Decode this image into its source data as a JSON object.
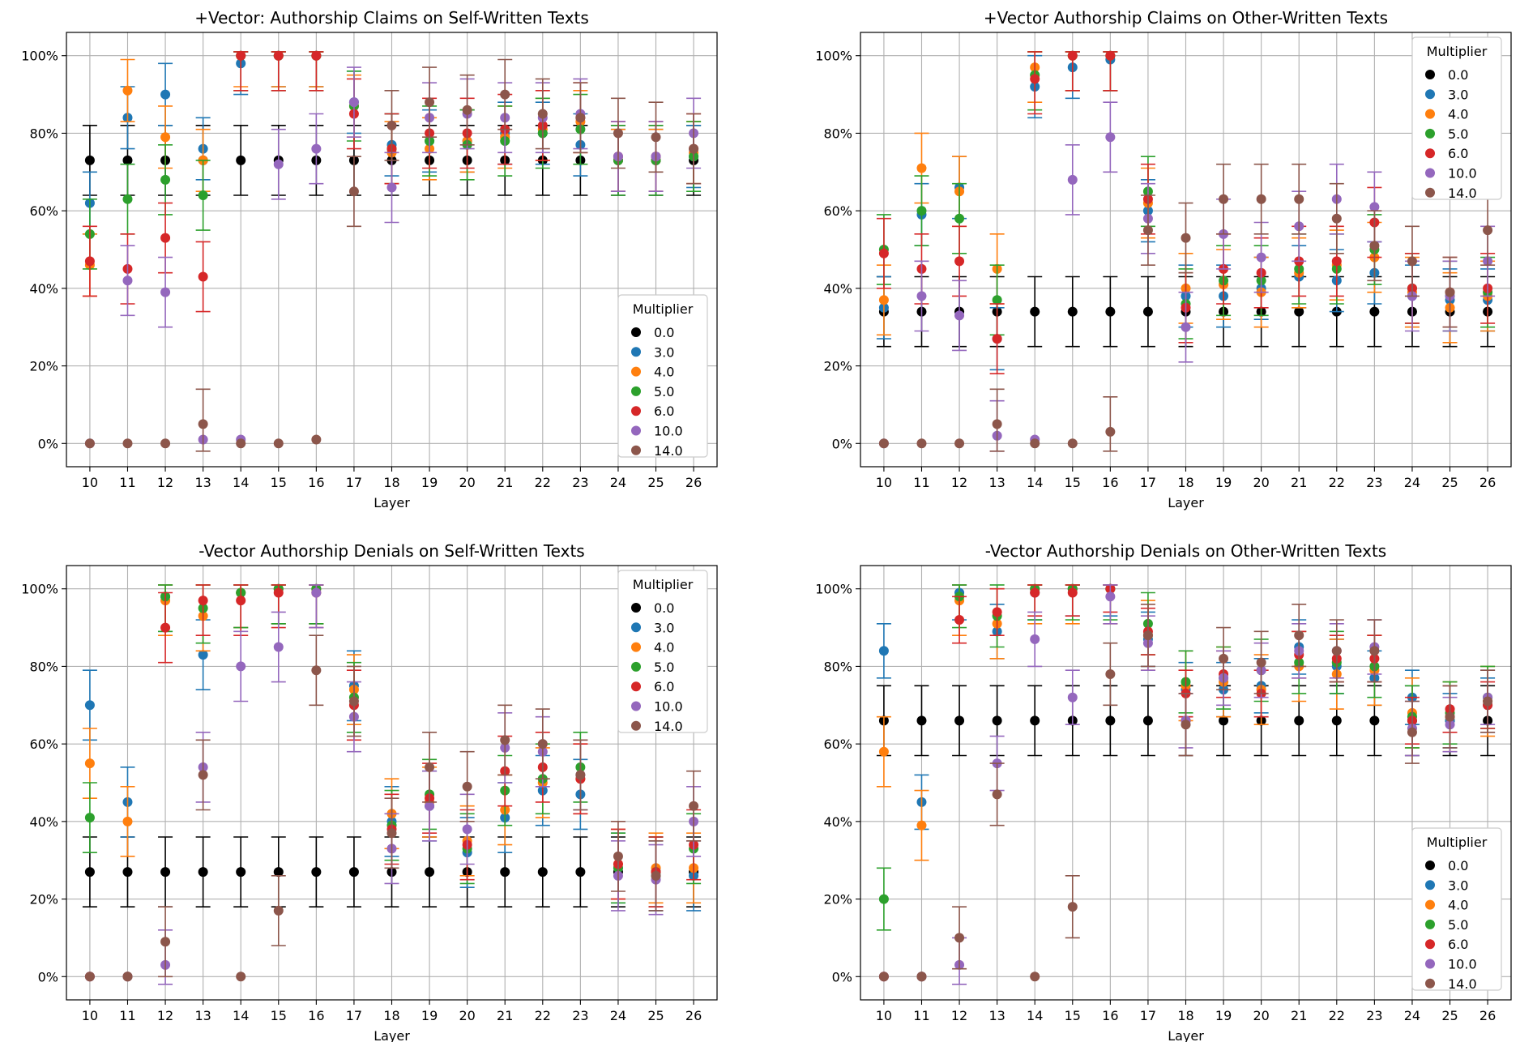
{
  "chart_data": [
    {
      "type": "scatter",
      "title": "+Vector: Authorship Claims on Self-Written Texts",
      "xlabel": "Layer",
      "ylabel": "",
      "ylim": [
        -6,
        106
      ],
      "grid": true,
      "legend_position": "lower-right",
      "legend_title": "Multiplier",
      "x": [
        10,
        11,
        12,
        13,
        14,
        15,
        16,
        17,
        18,
        19,
        20,
        21,
        22,
        23,
        24,
        25,
        26
      ],
      "yticks": [
        "0%",
        "20%",
        "40%",
        "60%",
        "80%",
        "100%"
      ],
      "series": [
        {
          "name": "0.0",
          "values": [
            73,
            73,
            73,
            73,
            73,
            73,
            73,
            73,
            73,
            73,
            73,
            73,
            73,
            73,
            73,
            73,
            73
          ],
          "error": 9
        },
        {
          "name": "3.0",
          "values": [
            62,
            84,
            90,
            76,
            98,
            100,
            100,
            88,
            77,
            78,
            78,
            80,
            80,
            77,
            73,
            73,
            74
          ],
          "error": 8
        },
        {
          "name": "4.0",
          "values": [
            46,
            91,
            79,
            73,
            100,
            100,
            100,
            87,
            75,
            76,
            78,
            79,
            81,
            83,
            73,
            73,
            75
          ],
          "error": 8
        },
        {
          "name": "5.0",
          "values": [
            54,
            63,
            68,
            64,
            100,
            100,
            100,
            87,
            76,
            78,
            77,
            78,
            80,
            81,
            73,
            73,
            74
          ],
          "error": 9
        },
        {
          "name": "6.0",
          "values": [
            47,
            45,
            53,
            43,
            100,
            100,
            100,
            85,
            76,
            80,
            80,
            81,
            82,
            84,
            74,
            74,
            76
          ],
          "error": 9
        },
        {
          "name": "10.0",
          "values": [
            0,
            42,
            39,
            1,
            1,
            72,
            76,
            88,
            66,
            84,
            85,
            84,
            84,
            85,
            74,
            74,
            80
          ],
          "error": 9
        },
        {
          "name": "14.0",
          "values": [
            0,
            0,
            0,
            5,
            0,
            0,
            1,
            65,
            82,
            88,
            86,
            90,
            85,
            84,
            80,
            79,
            76
          ],
          "error": 9
        }
      ]
    },
    {
      "type": "scatter",
      "title": "+Vector Authorship Claims on Other-Written Texts",
      "xlabel": "Layer",
      "ylabel": "",
      "ylim": [
        -6,
        106
      ],
      "grid": true,
      "legend_position": "upper-right",
      "legend_title": "Multiplier",
      "x": [
        10,
        11,
        12,
        13,
        14,
        15,
        16,
        17,
        18,
        19,
        20,
        21,
        22,
        23,
        24,
        25,
        26
      ],
      "yticks": [
        "0%",
        "20%",
        "40%",
        "60%",
        "80%",
        "100%"
      ],
      "series": [
        {
          "name": "0.0",
          "values": [
            34,
            34,
            34,
            34,
            34,
            34,
            34,
            34,
            34,
            34,
            34,
            34,
            34,
            34,
            34,
            34,
            34
          ],
          "error": 9
        },
        {
          "name": "3.0",
          "values": [
            35,
            59,
            66,
            27,
            92,
            97,
            99,
            60,
            38,
            38,
            40,
            43,
            42,
            44,
            38,
            37,
            37
          ],
          "error": 8
        },
        {
          "name": "4.0",
          "values": [
            37,
            71,
            65,
            45,
            97,
            100,
            100,
            62,
            40,
            41,
            39,
            44,
            46,
            48,
            39,
            35,
            38
          ],
          "error": 9
        },
        {
          "name": "5.0",
          "values": [
            50,
            60,
            58,
            37,
            95,
            100,
            100,
            65,
            36,
            42,
            42,
            45,
            45,
            50,
            40,
            38,
            39
          ],
          "error": 9
        },
        {
          "name": "6.0",
          "values": [
            49,
            45,
            47,
            27,
            94,
            100,
            100,
            63,
            35,
            45,
            44,
            47,
            47,
            57,
            40,
            39,
            40
          ],
          "error": 9
        },
        {
          "name": "10.0",
          "values": [
            0,
            38,
            33,
            2,
            1,
            68,
            79,
            58,
            30,
            54,
            48,
            56,
            63,
            61,
            38,
            38,
            47
          ],
          "error": 9
        },
        {
          "name": "14.0",
          "values": [
            0,
            0,
            0,
            5,
            0,
            0,
            3,
            55,
            53,
            63,
            63,
            63,
            58,
            51,
            47,
            39,
            55
          ],
          "error": 9
        }
      ]
    },
    {
      "type": "scatter",
      "title": "-Vector Authorship Denials on Self-Written Texts",
      "xlabel": "Layer",
      "ylabel": "",
      "ylim": [
        -6,
        106
      ],
      "grid": true,
      "legend_position": "upper-right",
      "legend_title": "Multiplier",
      "x": [
        10,
        11,
        12,
        13,
        14,
        15,
        16,
        17,
        18,
        19,
        20,
        21,
        22,
        23,
        24,
        25,
        26
      ],
      "yticks": [
        "0%",
        "20%",
        "40%",
        "60%",
        "80%",
        "100%"
      ],
      "series": [
        {
          "name": "0.0",
          "values": [
            27,
            27,
            27,
            27,
            27,
            27,
            27,
            27,
            27,
            27,
            27,
            27,
            27,
            27,
            27,
            27,
            27
          ],
          "error": 9
        },
        {
          "name": "3.0",
          "values": [
            70,
            45,
            98,
            83,
            99,
            100,
            100,
            75,
            40,
            44,
            32,
            41,
            48,
            47,
            28,
            26,
            26
          ],
          "error": 9
        },
        {
          "name": "4.0",
          "values": [
            55,
            40,
            97,
            93,
            99,
            100,
            100,
            74,
            42,
            45,
            35,
            43,
            50,
            51,
            29,
            28,
            28
          ],
          "error": 9
        },
        {
          "name": "5.0",
          "values": [
            41,
            0,
            98,
            95,
            99,
            100,
            100,
            72,
            39,
            47,
            33,
            48,
            51,
            54,
            28,
            27,
            33
          ],
          "error": 9
        },
        {
          "name": "6.0",
          "values": [
            0,
            0,
            90,
            97,
            97,
            99,
            99,
            70,
            38,
            46,
            34,
            53,
            54,
            51,
            29,
            27,
            34
          ],
          "error": 9
        },
        {
          "name": "10.0",
          "values": [
            0,
            0,
            3,
            54,
            80,
            85,
            99,
            67,
            33,
            44,
            38,
            59,
            58,
            52,
            26,
            25,
            40
          ],
          "error": 9
        },
        {
          "name": "14.0",
          "values": [
            0,
            0,
            9,
            52,
            0,
            17,
            79,
            71,
            37,
            54,
            49,
            61,
            60,
            52,
            31,
            26,
            44
          ],
          "error": 9
        }
      ]
    },
    {
      "type": "scatter",
      "title": "-Vector Authorship Denials on Other-Written Texts",
      "xlabel": "Layer",
      "ylabel": "",
      "ylim": [
        -6,
        106
      ],
      "grid": true,
      "legend_position": "lower-right",
      "legend_title": "Multiplier",
      "x": [
        10,
        11,
        12,
        13,
        14,
        15,
        16,
        17,
        18,
        19,
        20,
        21,
        22,
        23,
        24,
        25,
        26
      ],
      "yticks": [
        "0%",
        "20%",
        "40%",
        "60%",
        "80%",
        "100%"
      ],
      "series": [
        {
          "name": "0.0",
          "values": [
            66,
            66,
            66,
            66,
            66,
            66,
            66,
            66,
            66,
            66,
            66,
            66,
            66,
            66,
            66,
            66,
            66
          ],
          "error": 9
        },
        {
          "name": "3.0",
          "values": [
            84,
            45,
            99,
            89,
            99,
            100,
            100,
            87,
            74,
            74,
            75,
            85,
            80,
            77,
            72,
            66,
            70
          ],
          "error": 7
        },
        {
          "name": "4.0",
          "values": [
            58,
            39,
            97,
            91,
            100,
            100,
            100,
            88,
            75,
            76,
            74,
            80,
            78,
            79,
            68,
            67,
            71
          ],
          "error": 9
        },
        {
          "name": "5.0",
          "values": [
            20,
            0,
            98,
            93,
            100,
            100,
            100,
            91,
            76,
            77,
            79,
            81,
            81,
            80,
            67,
            68,
            72
          ],
          "error": 8
        },
        {
          "name": "6.0",
          "values": [
            0,
            0,
            92,
            94,
            99,
            99,
            100,
            89,
            73,
            78,
            73,
            83,
            82,
            82,
            66,
            69,
            70
          ],
          "error": 6
        },
        {
          "name": "10.0",
          "values": [
            0,
            0,
            3,
            55,
            87,
            72,
            98,
            86,
            66,
            77,
            79,
            84,
            84,
            85,
            64,
            65,
            72
          ],
          "error": 7
        },
        {
          "name": "14.0",
          "values": [
            0,
            0,
            10,
            47,
            0,
            18,
            78,
            88,
            65,
            82,
            81,
            88,
            84,
            84,
            63,
            67,
            71
          ],
          "error": 8
        }
      ]
    }
  ],
  "colors": {
    "series": [
      "#000000",
      "#1f77b4",
      "#ff7f0e",
      "#2ca02c",
      "#d62728",
      "#9467bd",
      "#8c564b"
    ],
    "grid": "#b0b0b0",
    "frame": "#000000"
  }
}
